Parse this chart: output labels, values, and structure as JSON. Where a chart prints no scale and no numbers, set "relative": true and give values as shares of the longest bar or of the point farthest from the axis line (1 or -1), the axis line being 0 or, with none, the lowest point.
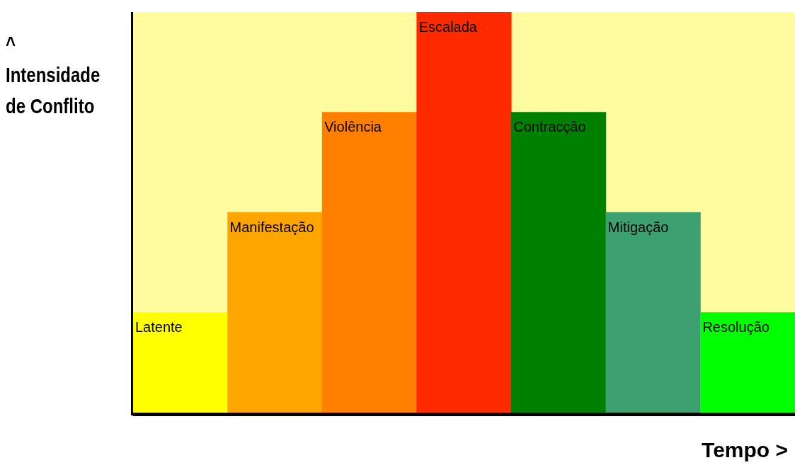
{
  "chart_data": {
    "type": "bar",
    "relative": true,
    "xlabel": "Tempo >",
    "ylabel": "^ Intensidade de Conflito",
    "categories": [
      "Latente",
      "Manifestação",
      "Violência",
      "Escalada",
      "Contracção",
      "Mitigação",
      "Resolução"
    ],
    "values": [
      0.25,
      0.5,
      0.75,
      1,
      0.75,
      0.5,
      0.25
    ],
    "colors": [
      "#ffff00",
      "#ffa500",
      "#ff7f00",
      "#ff2a00",
      "#008000",
      "#3ca070",
      "#00ff00"
    ]
  }
}
